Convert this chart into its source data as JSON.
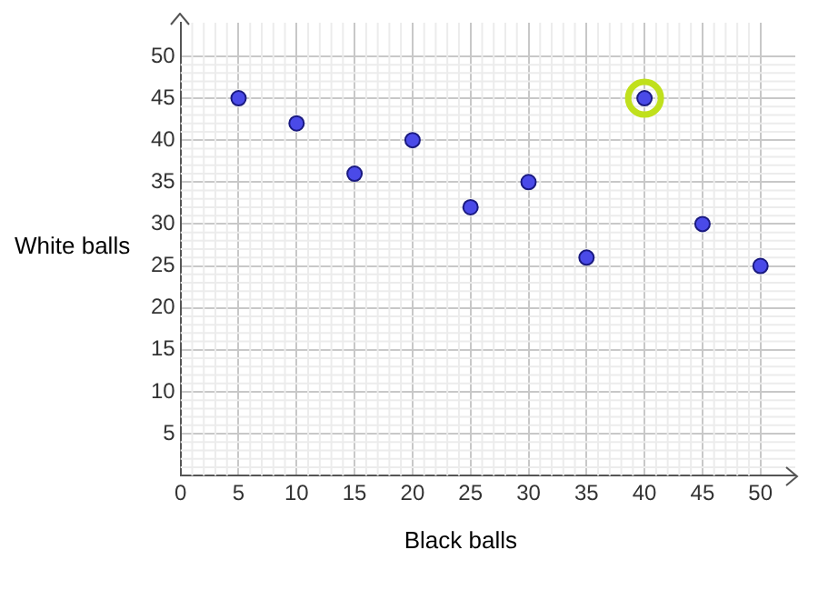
{
  "chart_data": {
    "type": "scatter",
    "xlabel": "Black balls",
    "ylabel": "White balls",
    "xlim": [
      0,
      53
    ],
    "ylim": [
      0,
      54
    ],
    "xticks": [
      0,
      5,
      10,
      15,
      20,
      25,
      30,
      35,
      40,
      45,
      50
    ],
    "yticks": [
      {
        "value": 0,
        "label": null
      },
      5,
      10,
      15,
      20,
      25,
      30,
      35,
      40,
      45,
      50
    ],
    "grid": true,
    "marker": "circle",
    "legend": false,
    "series": [
      {
        "color": "#4a4ae8",
        "x": [
          5,
          10,
          15,
          20,
          25,
          30,
          35,
          40,
          45,
          50
        ],
        "values": [
          45,
          42,
          36,
          40,
          32,
          35,
          26,
          45,
          30,
          25
        ]
      },
      {
        "color": "#c0e01c",
        "x": [
          40
        ],
        "values": [
          45
        ]
      }
    ]
  }
}
